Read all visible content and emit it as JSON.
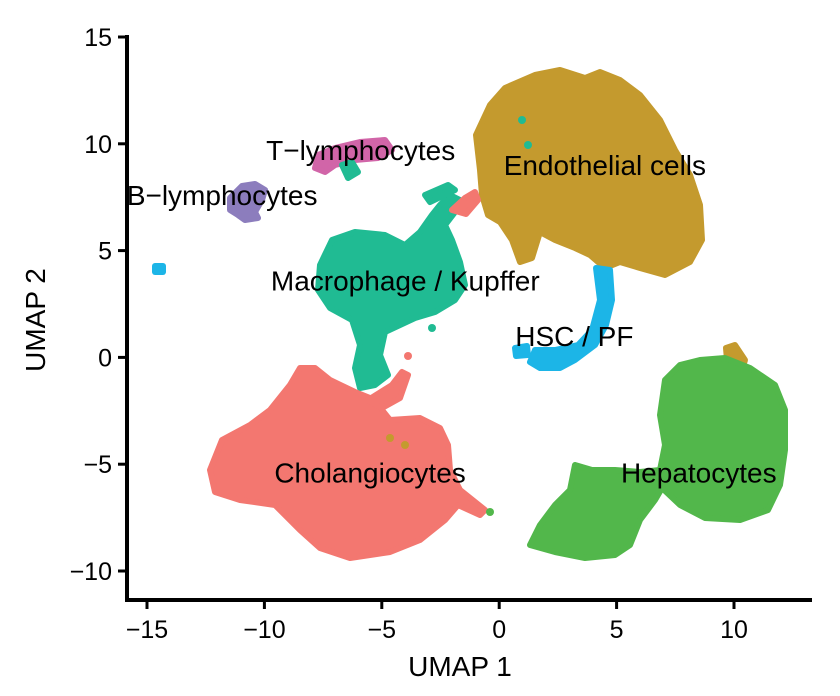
{
  "chart_data": {
    "type": "scatter",
    "title": "",
    "xlabel": "UMAP 1",
    "ylabel": "UMAP 2",
    "xlim": [
      -16,
      13.5
    ],
    "ylim": [
      -11.2,
      15
    ],
    "xticks": [
      -15,
      -10,
      -5,
      0,
      5,
      10
    ],
    "yticks": [
      -10,
      -5,
      0,
      5,
      10,
      15
    ],
    "xtick_labels": [
      "−15",
      "−10",
      "−5",
      "0",
      "5",
      "10"
    ],
    "ytick_labels": [
      "−10",
      "−5",
      "0",
      "5",
      "10",
      "15"
    ],
    "grid": false,
    "legend": "none (labels placed on clusters)",
    "clusters": [
      {
        "name": "Cholangiocytes",
        "color": "#F37770",
        "center": [
          -5.5,
          -5.0
        ],
        "x_range": [
          -12.5,
          -0.5
        ],
        "y_range": [
          -9.3,
          -0.3
        ],
        "label_pos": [
          -5.5,
          -5.4
        ]
      },
      {
        "name": "Endothelial cells",
        "color": "#C49A2E",
        "center": [
          4.5,
          9.5
        ],
        "x_range": [
          -0.5,
          8.5
        ],
        "y_range": [
          4.5,
          13.2
        ],
        "label_pos": [
          4.5,
          9.0
        ]
      },
      {
        "name": "Hepatocytes",
        "color": "#52B74B",
        "center": [
          7.0,
          -5.5
        ],
        "x_range": [
          1.3,
          11.2
        ],
        "y_range": [
          -9.2,
          0.3
        ],
        "label_pos": [
          8.5,
          -5.4
        ]
      },
      {
        "name": "Macrophage / Kupffer",
        "color": "#20BB93",
        "center": [
          -4.0,
          4.0
        ],
        "x_range": [
          -7.5,
          2.5
        ],
        "y_range": [
          -1.3,
          8.0
        ],
        "label_pos": [
          -4.0,
          3.6
        ]
      },
      {
        "name": "HSC / PF",
        "color": "#1CB5E7",
        "center": [
          3.5,
          0.5
        ],
        "x_range": [
          1.0,
          5.0
        ],
        "y_range": [
          -0.5,
          4.2
        ],
        "label_pos": [
          3.2,
          1.0
        ]
      },
      {
        "name": "B-lymphocytes",
        "color": "#8C7DBD",
        "center": [
          -10.5,
          7.5
        ],
        "x_range": [
          -11.2,
          -9.5
        ],
        "y_range": [
          6.8,
          8.2
        ],
        "label_pos": [
          -11.8,
          7.6
        ]
      },
      {
        "name": "T-lymphocytes",
        "color": "#D165A8",
        "center": [
          -6.5,
          9.2
        ],
        "x_range": [
          -7.6,
          -4.7
        ],
        "y_range": [
          8.7,
          9.9
        ],
        "label_pos": [
          -5.9,
          9.7
        ]
      }
    ],
    "cluster_labels_display": [
      "Cholangiocytes",
      "Endothelial cells",
      "Hepatocytes",
      "Macrophage / Kupffer",
      "HSC / PF",
      "B−lymphocytes",
      "T−lymphocytes"
    ]
  }
}
